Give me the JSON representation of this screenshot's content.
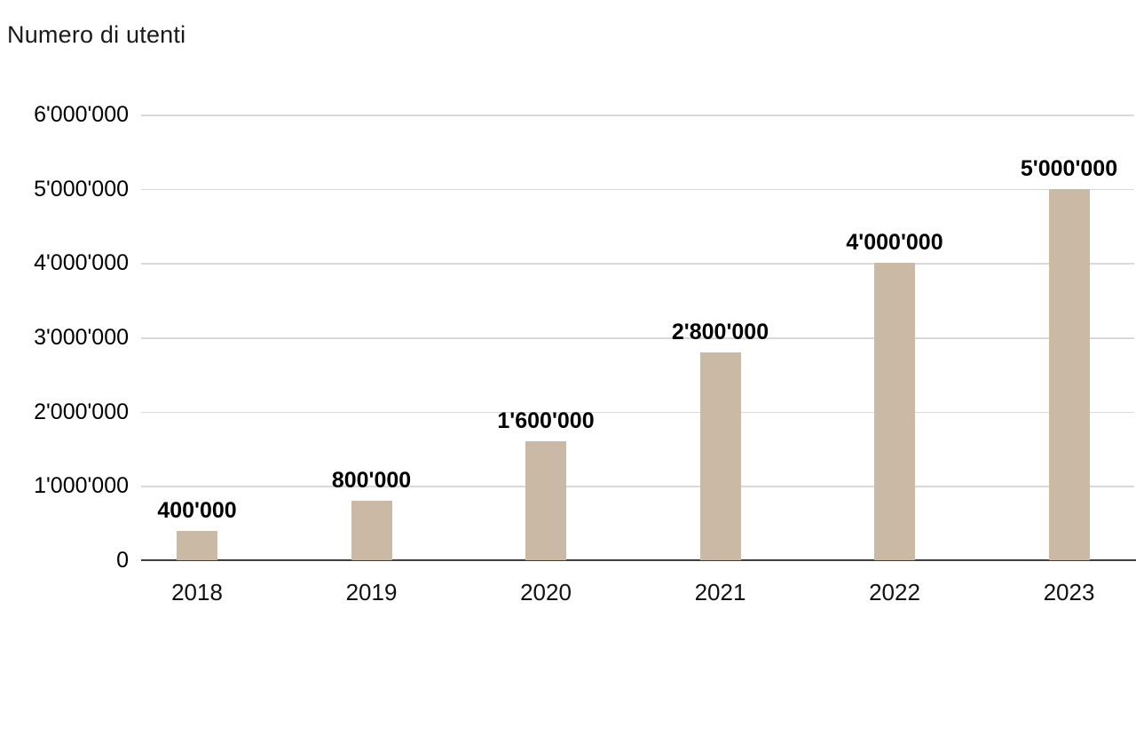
{
  "chart_data": {
    "type": "bar",
    "title": "Numero di utenti",
    "categories": [
      "2018",
      "2019",
      "2020",
      "2021",
      "2022",
      "2023"
    ],
    "values": [
      400000,
      800000,
      1600000,
      2800000,
      4000000,
      5000000
    ],
    "value_labels": [
      "400'000",
      "800'000",
      "1'600'000",
      "2'800'000",
      "4'000'000",
      "5'000'000"
    ],
    "y_ticks": [
      0,
      1000000,
      2000000,
      3000000,
      4000000,
      5000000,
      6000000
    ],
    "y_tick_labels": [
      "0",
      "1'000'000",
      "2'000'000",
      "3'000'000",
      "4'000'000",
      "5'000'000",
      "6'000'000"
    ],
    "xlabel": "",
    "ylabel": "",
    "ylim": [
      0,
      6000000
    ],
    "grid": true,
    "legend": false,
    "bar_color": "#c9b9a5",
    "grid_color": "#d9d9d9",
    "axis_color": "#3f3f3f",
    "label_color": "#000000"
  }
}
